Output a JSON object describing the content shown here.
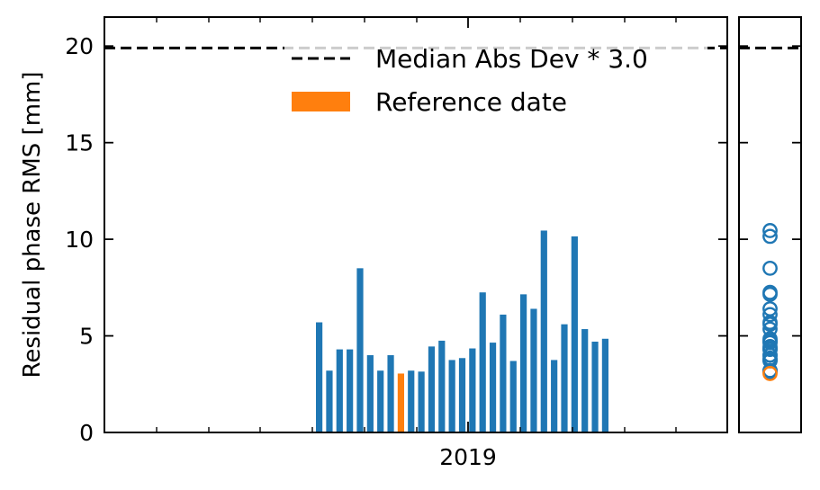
{
  "chart_data": {
    "type": "bar",
    "ylabel": "Residual phase RMS [mm]",
    "ylim": [
      0,
      21.5
    ],
    "yticks": [
      0,
      5,
      10,
      15,
      20
    ],
    "x_tick_label": "2019",
    "threshold": {
      "value": 19.9,
      "label": "Median Abs Dev * 3.0"
    },
    "legend": {
      "reference_label": "Reference date",
      "placement": "top-right"
    },
    "series": [
      {
        "values": [
          5.7,
          3.2,
          4.3,
          4.3,
          8.5,
          4.0,
          3.2,
          4.0,
          3.05,
          3.2,
          3.15,
          4.45,
          4.75,
          3.75,
          3.85,
          4.35,
          7.25,
          4.65,
          6.1,
          3.7,
          7.15,
          6.4,
          10.45,
          3.75,
          5.6,
          10.15,
          5.35,
          4.7,
          4.85
        ]
      }
    ],
    "reference_index": 8,
    "colors": {
      "bar": "#1f77b4",
      "reference": "#ff7f0e",
      "threshold": "#000000"
    }
  }
}
